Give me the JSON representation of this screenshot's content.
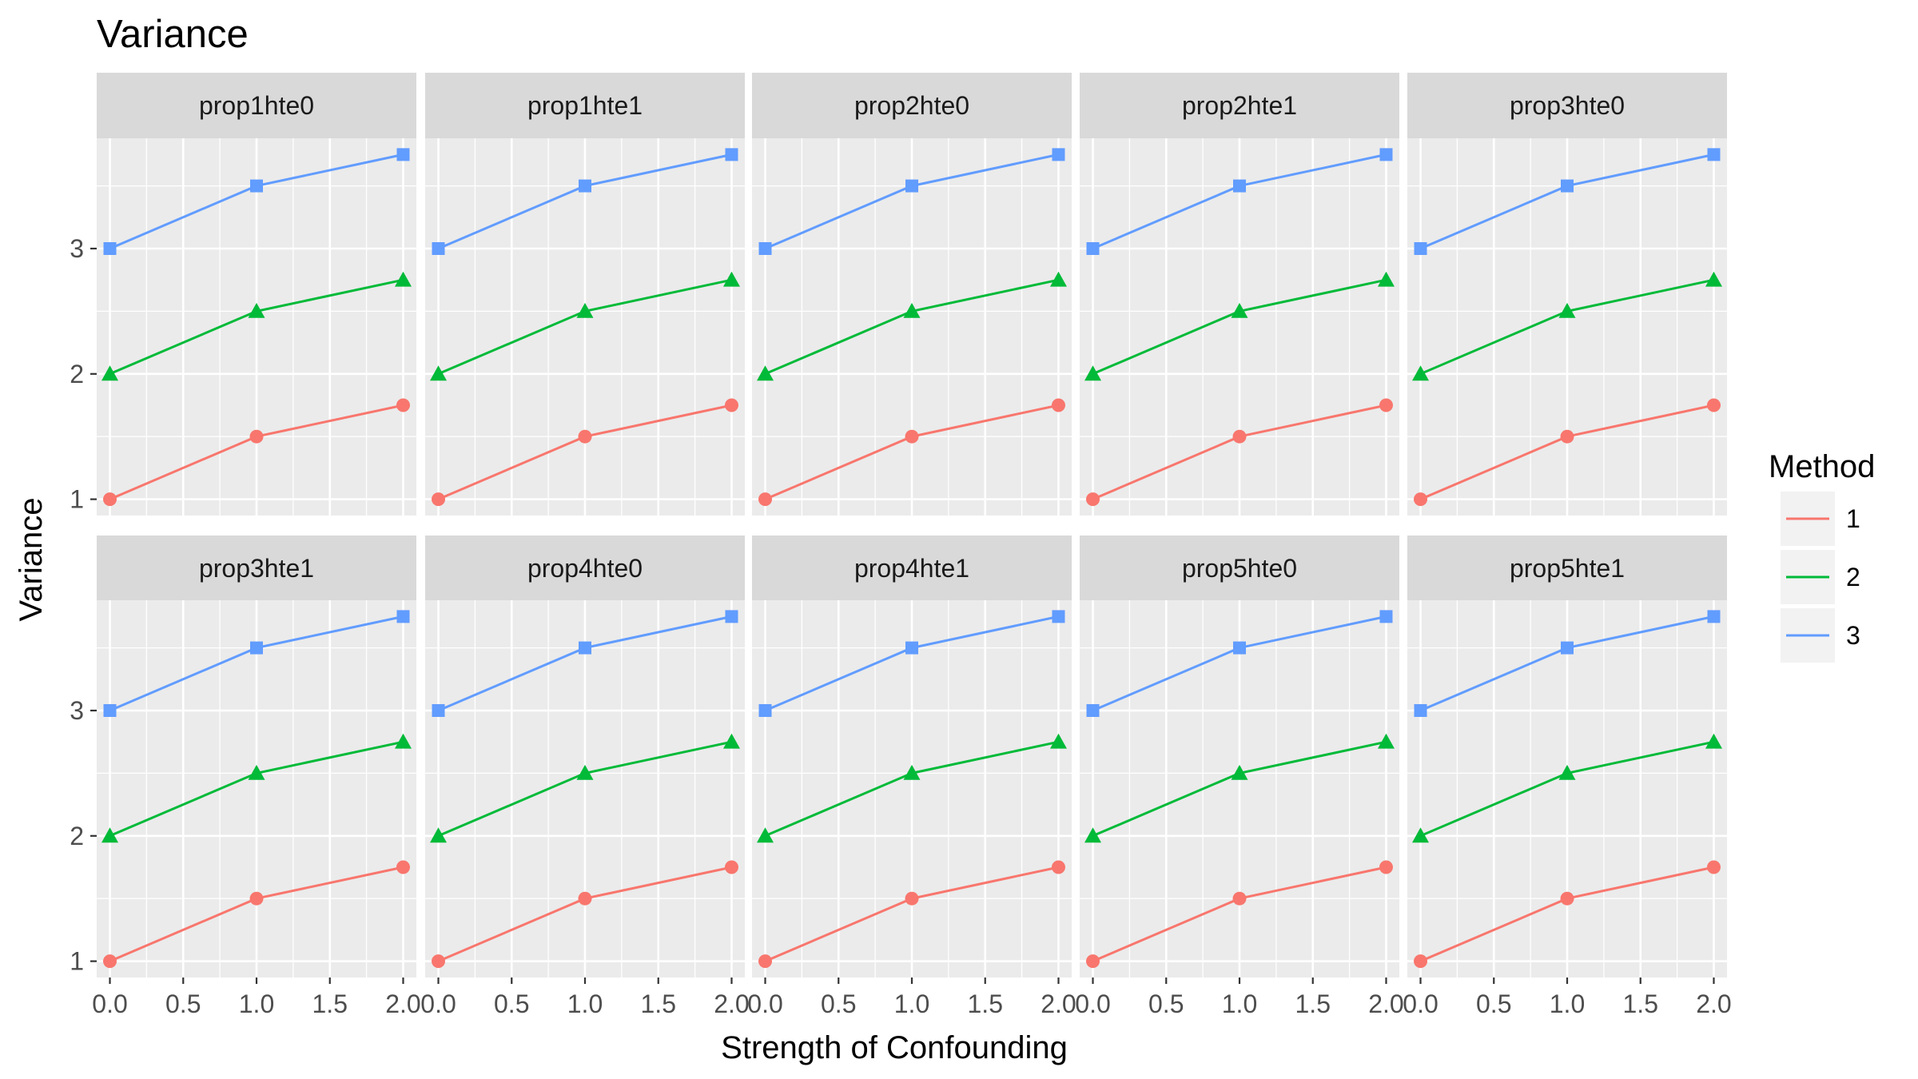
{
  "chart_data": {
    "type": "line",
    "title": "Variance",
    "xlabel": "Strength of Confounding",
    "ylabel": "Variance",
    "x": [
      0,
      1,
      2
    ],
    "x_ticks": [
      "0.0",
      "0.5",
      "1.0",
      "1.5",
      "2.0"
    ],
    "x_tick_values": [
      0,
      0.5,
      1,
      1.5,
      2
    ],
    "xlim": [
      -0.09,
      2.09
    ],
    "y_ticks": [
      "1",
      "2",
      "3"
    ],
    "y_tick_values": [
      1,
      2,
      3
    ],
    "ylim": [
      0.87,
      3.88
    ],
    "grid": true,
    "facets": [
      "prop1hte0",
      "prop1hte1",
      "prop2hte0",
      "prop2hte1",
      "prop3hte0",
      "prop3hte1",
      "prop4hte0",
      "prop4hte1",
      "prop5hte0",
      "prop5hte1"
    ],
    "facet_layout": "2 rows x 5 columns",
    "legend": {
      "title": "Method",
      "position": "right"
    },
    "series": [
      {
        "name": "1",
        "color": "#F8766D",
        "marker": "circle",
        "values": [
          1.0,
          1.5,
          1.75
        ]
      },
      {
        "name": "2",
        "color": "#00BA38",
        "marker": "triangle",
        "values": [
          2.0,
          2.5,
          2.75
        ]
      },
      {
        "name": "3",
        "color": "#619CFF",
        "marker": "square",
        "values": [
          3.0,
          3.5,
          3.75
        ]
      }
    ]
  }
}
